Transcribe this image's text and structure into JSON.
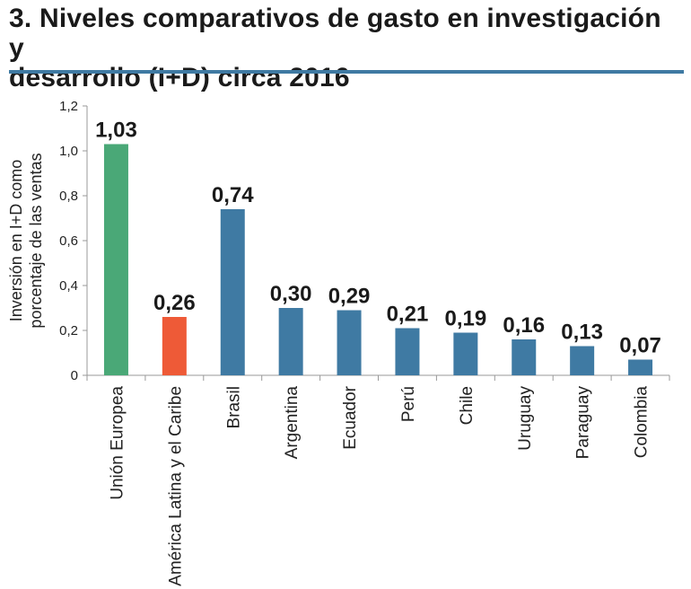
{
  "title_line1": "3. Niveles comparativos de gasto en investigación y",
  "title_line2": "desarrollo (I+D) circa 2016",
  "accent_color": "#3f7aa3",
  "chart_data": {
    "type": "bar",
    "title": "3. Niveles comparativos de gasto en investigación y desarrollo (I+D) circa 2016",
    "ylabel_lines": [
      "Inversión en I+D como",
      "porcentaje de las ventas"
    ],
    "xlabel": "",
    "ylim": [
      0,
      1.2
    ],
    "yticks": [
      {
        "value": 0,
        "label": "0"
      },
      {
        "value": 0.2,
        "label": "0,2"
      },
      {
        "value": 0.4,
        "label": "0,4"
      },
      {
        "value": 0.6,
        "label": "0,6"
      },
      {
        "value": 0.8,
        "label": "0,8"
      },
      {
        "value": 1.0,
        "label": "1,0"
      },
      {
        "value": 1.2,
        "label": "1,2"
      }
    ],
    "grid": false,
    "categories": [
      "Unión Europea",
      "América Latina y el Caribe",
      "Brasil",
      "Argentina",
      "Ecuador",
      "Perú",
      "Chile",
      "Uruguay",
      "Paraguay",
      "Colombia"
    ],
    "values": [
      1.03,
      0.26,
      0.74,
      0.3,
      0.29,
      0.21,
      0.19,
      0.16,
      0.13,
      0.07
    ],
    "data_labels": [
      "1,03",
      "0,26",
      "0,74",
      "0,30",
      "0,29",
      "0,21",
      "0,19",
      "0,16",
      "0,13",
      "0,07"
    ],
    "colors": [
      "#4aa877",
      "#ee5a37",
      "#3f7aa3",
      "#3f7aa3",
      "#3f7aa3",
      "#3f7aa3",
      "#3f7aa3",
      "#3f7aa3",
      "#3f7aa3",
      "#3f7aa3"
    ]
  }
}
